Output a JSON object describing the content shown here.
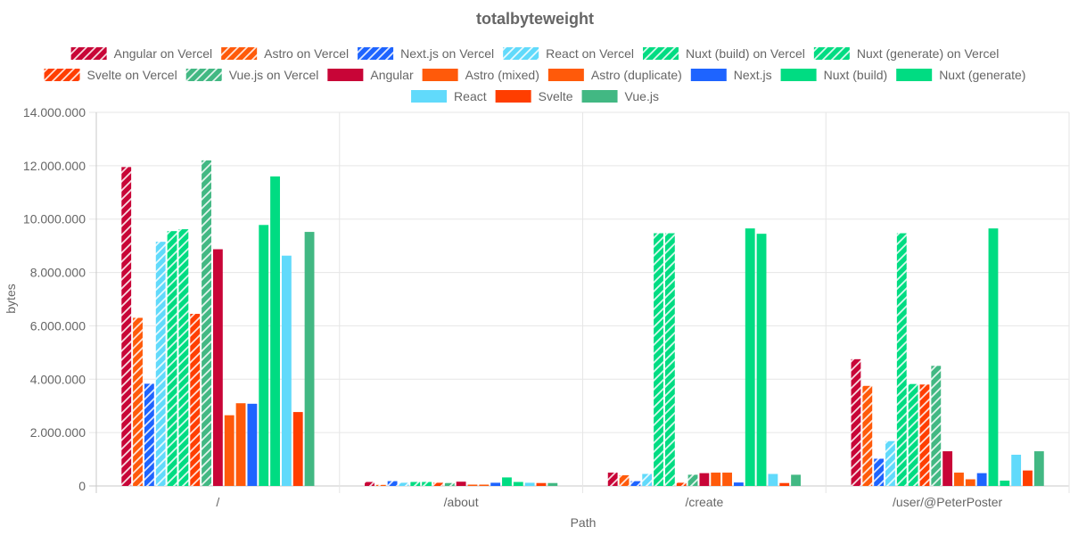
{
  "chart_data": {
    "type": "bar",
    "title": "totalbyteweight",
    "xlabel": "Path",
    "ylabel": "bytes",
    "ylim": [
      0,
      14000000
    ],
    "yticks": [
      "0",
      "2.000.000",
      "4.000.000",
      "6.000.000",
      "8.000.000",
      "10.000.000",
      "12.000.000",
      "14.000.000"
    ],
    "grid": true,
    "legend_position": "top",
    "categories": [
      "/",
      "/about",
      "/create",
      "/user/@PeterPoster"
    ],
    "series": [
      {
        "name": "Angular on Vercel",
        "color": "#c80537",
        "hatched": true,
        "values": [
          11950000,
          150000,
          500000,
          4750000
        ]
      },
      {
        "name": "Astro on Vercel",
        "color": "#ff5a0a",
        "hatched": true,
        "values": [
          6300000,
          40000,
          400000,
          3750000
        ]
      },
      {
        "name": "Next.js on Vercel",
        "color": "#1e64ff",
        "hatched": true,
        "values": [
          3830000,
          180000,
          180000,
          1020000
        ]
      },
      {
        "name": "React on Vercel",
        "color": "#61dafb",
        "hatched": true,
        "values": [
          9150000,
          120000,
          450000,
          1680000
        ]
      },
      {
        "name": "Nuxt (build) on Vercel",
        "color": "#00dc82",
        "hatched": true,
        "values": [
          9550000,
          150000,
          9470000,
          9470000
        ]
      },
      {
        "name": "Nuxt (generate) on Vercel",
        "color": "#00dc82",
        "hatched": true,
        "values": [
          9620000,
          150000,
          9470000,
          3820000
        ]
      },
      {
        "name": "Svelte on Vercel",
        "color": "#ff3e00",
        "hatched": true,
        "values": [
          6450000,
          120000,
          120000,
          3800000
        ]
      },
      {
        "name": "Vue.js on Vercel",
        "color": "#42b883",
        "hatched": true,
        "values": [
          12200000,
          110000,
          420000,
          4500000
        ]
      },
      {
        "name": "Angular",
        "color": "#c80537",
        "hatched": false,
        "values": [
          8870000,
          160000,
          480000,
          1300000
        ]
      },
      {
        "name": "Astro (mixed)",
        "color": "#ff5a0a",
        "hatched": false,
        "values": [
          2650000,
          50000,
          500000,
          500000
        ]
      },
      {
        "name": "Astro (duplicate)",
        "color": "#ff5a0a",
        "hatched": false,
        "values": [
          3100000,
          50000,
          500000,
          250000
        ]
      },
      {
        "name": "Next.js",
        "color": "#1e64ff",
        "hatched": false,
        "values": [
          3080000,
          120000,
          130000,
          480000
        ]
      },
      {
        "name": "Nuxt (build)",
        "color": "#00dc82",
        "hatched": false,
        "values": [
          9780000,
          320000,
          9650000,
          9650000
        ]
      },
      {
        "name": "Nuxt (generate)",
        "color": "#00dc82",
        "hatched": false,
        "values": [
          11600000,
          150000,
          9450000,
          200000
        ]
      },
      {
        "name": "React",
        "color": "#61dafb",
        "hatched": false,
        "values": [
          8630000,
          120000,
          450000,
          1170000
        ]
      },
      {
        "name": "Svelte",
        "color": "#ff3e00",
        "hatched": false,
        "values": [
          2770000,
          110000,
          110000,
          580000
        ]
      },
      {
        "name": "Vue.js",
        "color": "#42b883",
        "hatched": false,
        "values": [
          9520000,
          110000,
          420000,
          1300000
        ]
      }
    ]
  }
}
